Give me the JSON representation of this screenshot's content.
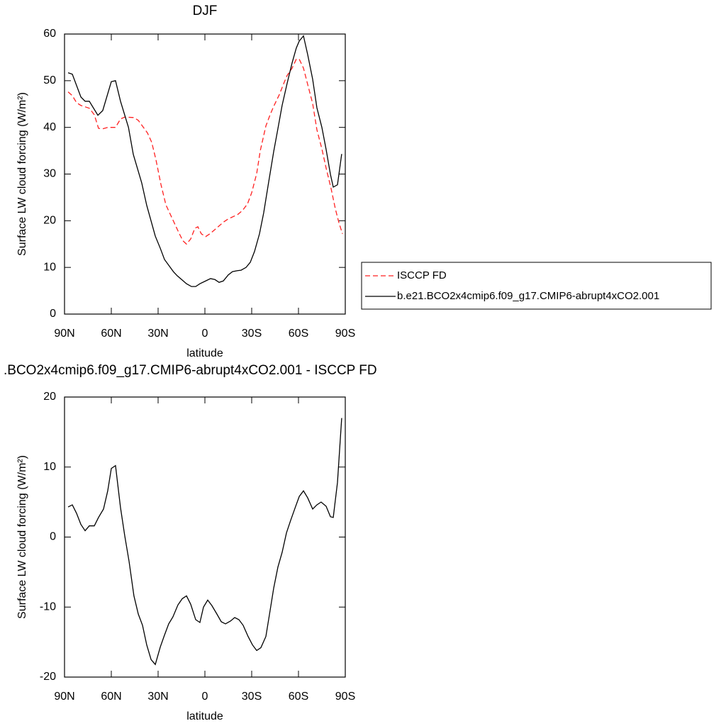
{
  "chart_data": [
    {
      "type": "line",
      "title": "DJF",
      "x_label": "latitude",
      "y_label": "Surface LW cloud forcing (W/m²)",
      "xlim": [
        90,
        -90
      ],
      "xticks": [
        {
          "value": 90,
          "label": "90N"
        },
        {
          "value": 60,
          "label": "60N"
        },
        {
          "value": 30,
          "label": "30N"
        },
        0,
        {
          "value": -30,
          "label": "30S"
        },
        {
          "value": -60,
          "label": "60S"
        },
        {
          "value": -90,
          "label": "90S"
        }
      ],
      "ylim": [
        0,
        60
      ],
      "yticks": [
        0,
        10,
        20,
        30,
        40,
        50,
        60
      ],
      "legend": "right",
      "series": [
        {
          "name": "ISCCP FD",
          "color": "#ff2020",
          "dash": true,
          "x": [
            87.7,
            85,
            82.3,
            79.5,
            74.1,
            70.9,
            68.2,
            65.5,
            62.3,
            57.3,
            54.1,
            51.4,
            45.5,
            42.7,
            36.8,
            34.1,
            31.4,
            28.2,
            25,
            20,
            16.8,
            14.1,
            11.8,
            9.1,
            6.4,
            4.5,
            2.3,
            -0.5,
            -3.2,
            -6.4,
            -9.5,
            -12.3,
            -15,
            -20.9,
            -24.1,
            -27.3,
            -30,
            -33.2,
            -35.5,
            -39.1,
            -41.8,
            -44.1,
            -47.7,
            -50.9,
            -52.7,
            -55.9,
            -58.6,
            -60.5,
            -63.2,
            -65.9,
            -69.1,
            -71.8,
            -75,
            -77.7,
            -80.9,
            -83.6,
            -85.9,
            -88.2
          ],
          "values": [
            47.6,
            46.8,
            45.3,
            44.7,
            44.1,
            42.7,
            39.8,
            39.7,
            40,
            40,
            41.8,
            42.2,
            42.1,
            41.5,
            38.8,
            36.8,
            33.1,
            27.8,
            23.4,
            19.8,
            17.5,
            15.7,
            15,
            16.1,
            18.4,
            18.7,
            17.2,
            16.6,
            17.2,
            18.1,
            19,
            19.8,
            20.4,
            21.3,
            22.2,
            23.6,
            26,
            30.1,
            35,
            40.3,
            42.7,
            44.5,
            47,
            49.7,
            51.1,
            52.7,
            54.6,
            54.6,
            52.7,
            49.2,
            45.1,
            39.5,
            35.4,
            31.3,
            26.9,
            22.6,
            19.6,
            17.2
          ]
        },
        {
          "name": "b.e21.BCO2x4cmip6.f09_g17.CMIP6-abrupt4xCO2.001",
          "color": "#000000",
          "dash": false,
          "x": [
            87.7,
            85,
            79.5,
            76.8,
            74.1,
            68.6,
            65.5,
            60,
            57.3,
            54.1,
            49,
            45.9,
            40.5,
            37.3,
            31.8,
            28.6,
            25.9,
            20,
            17.7,
            11.8,
            8.6,
            5.9,
            3.2,
            -0.5,
            -3.6,
            -6.4,
            -9.1,
            -11.8,
            -15,
            -17.7,
            -20.9,
            -23.2,
            -26.4,
            -29.1,
            -31.8,
            -35,
            -37.7,
            -40.5,
            -44.1,
            -46.8,
            -49.5,
            -52.7,
            -55.9,
            -58.6,
            -60.5,
            -63.2,
            -65.9,
            -69.1,
            -71.8,
            -75,
            -77.7,
            -80.5,
            -82.3,
            -85,
            -87.7
          ],
          "values": [
            51.7,
            51.4,
            46.5,
            45.6,
            45.6,
            42.6,
            43.6,
            49.8,
            50,
            45.6,
            40,
            34.2,
            28.1,
            23.3,
            16.7,
            14.1,
            11.7,
            9,
            8.2,
            6.5,
            5.9,
            5.9,
            6.5,
            7.1,
            7.6,
            7.4,
            6.8,
            7.1,
            8.4,
            9.1,
            9.3,
            9.4,
            10,
            11.1,
            13.4,
            17.2,
            21.7,
            27.5,
            34.8,
            39.7,
            44.7,
            49.4,
            53.8,
            57,
            58.5,
            59.6,
            55.6,
            50.3,
            44.2,
            40,
            35.3,
            29.9,
            27.2,
            27.7,
            34.3
          ]
        }
      ]
    },
    {
      "type": "line",
      "title": ".BCO2x4cmip6.f09_g17.CMIP6-abrupt4xCO2.001 - ISCCP FD",
      "x_label": "latitude",
      "y_label": "Surface LW cloud forcing (W/m²)",
      "xlim": [
        90,
        -90
      ],
      "xticks": [
        {
          "value": 90,
          "label": "90N"
        },
        {
          "value": 60,
          "label": "60N"
        },
        {
          "value": 30,
          "label": "30N"
        },
        0,
        {
          "value": -30,
          "label": "30S"
        },
        {
          "value": -60,
          "label": "60S"
        },
        {
          "value": -90,
          "label": "90S"
        }
      ],
      "ylim": [
        -20,
        20
      ],
      "yticks": [
        -20,
        -10,
        0,
        10,
        20
      ],
      "series": [
        {
          "color": "#000000",
          "dash": false,
          "x": [
            87.7,
            85,
            82.3,
            79.5,
            76.8,
            74.1,
            70.9,
            68.2,
            65,
            62.3,
            60,
            57.3,
            54.1,
            51.4,
            48.6,
            45.5,
            42.7,
            40,
            37.3,
            34.5,
            31.8,
            28.6,
            25.9,
            23.2,
            20.5,
            17.3,
            14.5,
            11.8,
            9.1,
            5.9,
            3.2,
            0.9,
            -1.8,
            -4.5,
            -7.7,
            -10.5,
            -13.2,
            -16.4,
            -19.1,
            -21.8,
            -24.5,
            -27.7,
            -30.5,
            -33.2,
            -35.9,
            -39.1,
            -41.8,
            -44.1,
            -46.8,
            -49.5,
            -52.3,
            -55,
            -58.2,
            -60.5,
            -63.2,
            -65.9,
            -69.1,
            -71.8,
            -74.5,
            -77.7,
            -80.5,
            -82.3,
            -85,
            -87.7
          ],
          "values": [
            4.3,
            4.6,
            3.4,
            1.8,
            0.9,
            1.6,
            1.6,
            2.8,
            4,
            6.6,
            9.8,
            10.2,
            4.2,
            0.2,
            -3.5,
            -8.4,
            -11,
            -12.6,
            -15.4,
            -17.5,
            -18.2,
            -15.7,
            -14,
            -12.4,
            -11.4,
            -9.7,
            -8.8,
            -8.4,
            -9.6,
            -11.8,
            -12.2,
            -10,
            -9,
            -9.8,
            -11,
            -12.1,
            -12.4,
            -12,
            -11.5,
            -11.8,
            -12.6,
            -14.2,
            -15.4,
            -16.2,
            -15.8,
            -14.2,
            -10.5,
            -7.3,
            -4.3,
            -2.2,
            0.6,
            2.4,
            4.4,
            5.8,
            6.6,
            5.6,
            4,
            4.6,
            5,
            4.4,
            2.9,
            2.8,
            7.8,
            17
          ]
        }
      ]
    }
  ]
}
